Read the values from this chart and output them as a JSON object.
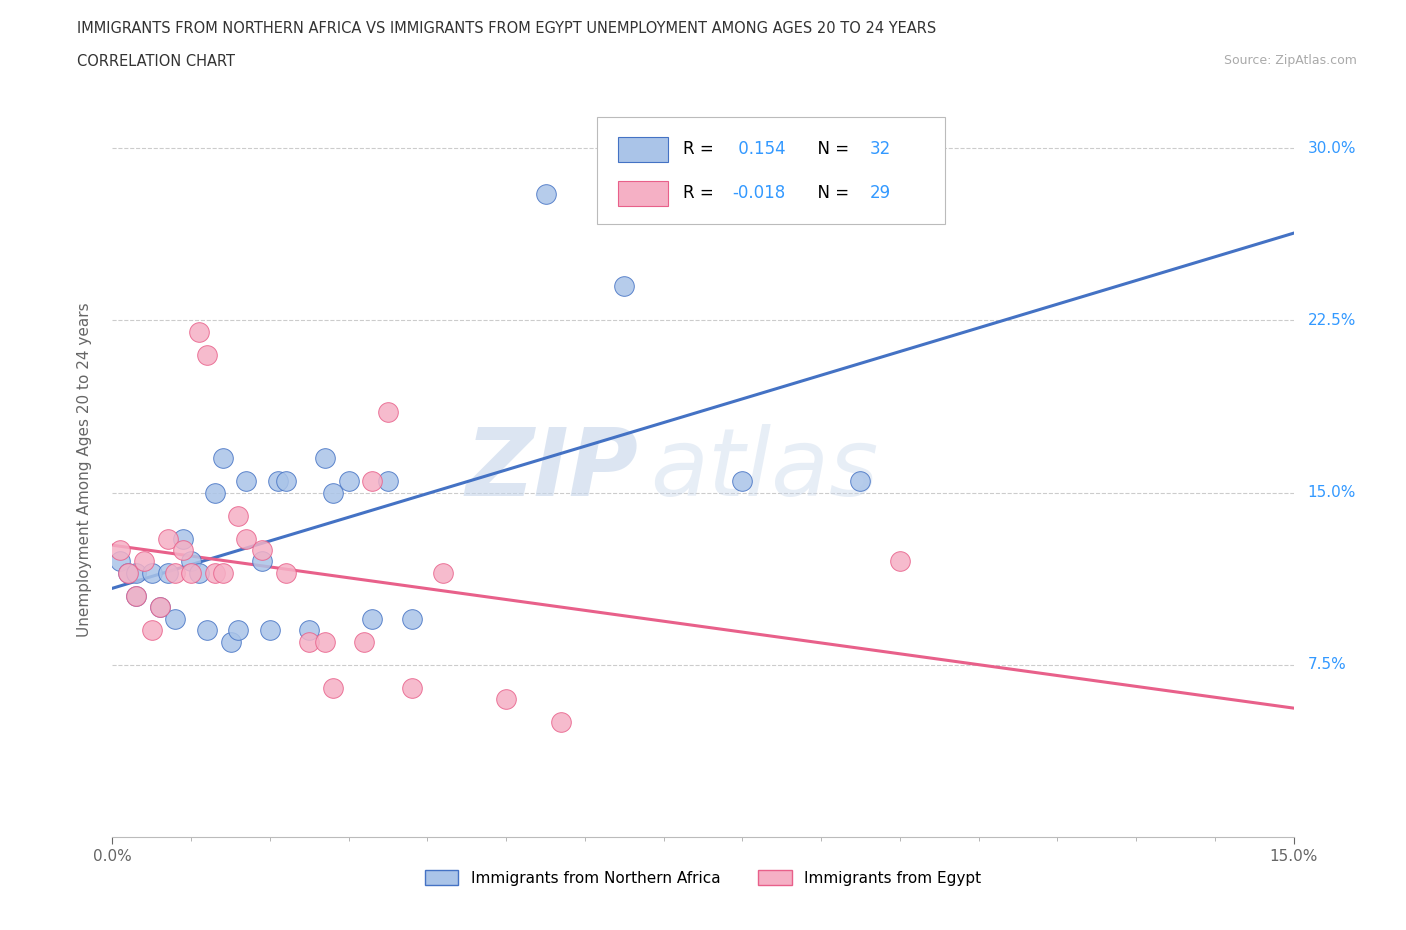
{
  "title_line1": "IMMIGRANTS FROM NORTHERN AFRICA VS IMMIGRANTS FROM EGYPT UNEMPLOYMENT AMONG AGES 20 TO 24 YEARS",
  "title_line2": "CORRELATION CHART",
  "source_text": "Source: ZipAtlas.com",
  "ylabel": "Unemployment Among Ages 20 to 24 years",
  "xlim": [
    0.0,
    0.15
  ],
  "ylim": [
    0.0,
    0.32
  ],
  "r1": 0.154,
  "n1": 32,
  "r2": -0.018,
  "n2": 29,
  "series1_color": "#aac4e8",
  "series2_color": "#f5b0c5",
  "trendline1_color": "#4472c4",
  "trendline2_color": "#e8608a",
  "series1_name": "Immigrants from Northern Africa",
  "series2_name": "Immigrants from Egypt",
  "blue_x": [
    0.001,
    0.002,
    0.003,
    0.003,
    0.005,
    0.006,
    0.007,
    0.008,
    0.009,
    0.01,
    0.011,
    0.012,
    0.013,
    0.014,
    0.015,
    0.016,
    0.017,
    0.019,
    0.02,
    0.021,
    0.022,
    0.025,
    0.027,
    0.028,
    0.03,
    0.033,
    0.035,
    0.038,
    0.055,
    0.065,
    0.08,
    0.095
  ],
  "blue_y": [
    0.12,
    0.115,
    0.105,
    0.115,
    0.115,
    0.1,
    0.115,
    0.095,
    0.13,
    0.12,
    0.115,
    0.09,
    0.15,
    0.165,
    0.085,
    0.09,
    0.155,
    0.12,
    0.09,
    0.155,
    0.155,
    0.09,
    0.165,
    0.15,
    0.155,
    0.095,
    0.155,
    0.095,
    0.28,
    0.24,
    0.155,
    0.155
  ],
  "pink_x": [
    0.001,
    0.002,
    0.003,
    0.004,
    0.005,
    0.006,
    0.007,
    0.008,
    0.009,
    0.01,
    0.011,
    0.012,
    0.013,
    0.014,
    0.016,
    0.017,
    0.019,
    0.022,
    0.025,
    0.027,
    0.028,
    0.032,
    0.033,
    0.035,
    0.038,
    0.042,
    0.05,
    0.057,
    0.1
  ],
  "pink_y": [
    0.125,
    0.115,
    0.105,
    0.12,
    0.09,
    0.1,
    0.13,
    0.115,
    0.125,
    0.115,
    0.22,
    0.21,
    0.115,
    0.115,
    0.14,
    0.13,
    0.125,
    0.115,
    0.085,
    0.085,
    0.065,
    0.085,
    0.155,
    0.185,
    0.065,
    0.115,
    0.06,
    0.05,
    0.12
  ],
  "ytick_vals": [
    0.0,
    0.075,
    0.15,
    0.225,
    0.3
  ],
  "ytick_labels": [
    "",
    "7.5%",
    "15.0%",
    "22.5%",
    "30.0%"
  ],
  "gridline_color": "#cccccc",
  "axis_label_color": "#666666",
  "right_tick_color": "#3399ff",
  "legend_color": "#3399ff"
}
